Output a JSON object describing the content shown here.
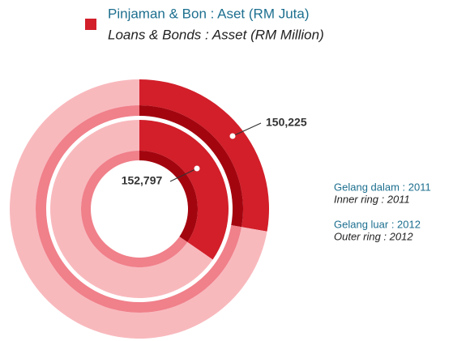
{
  "chart_data": {
    "type": "donut",
    "legend": {
      "name": "Pinjaman & Bon : Aset (RM Juta)",
      "name_en": "Loans & Bonds : Asset (RM Million)",
      "color": "#d21f2a"
    },
    "categories": [
      "Pinjaman & Bon : Aset (RM Juta)",
      null
    ],
    "colors": [
      "#d21f2a",
      "#f8b9bd"
    ],
    "accent_colors": [
      "#a3050f",
      "#f0808a"
    ],
    "rings": [
      {
        "name": "Gelang dalam : 2011",
        "name_en": "Inner ring : 2011",
        "values": [
          152797,
          288663
        ],
        "value_labels": [
          "152,797",
          null
        ]
      },
      {
        "name": "Gelang luar : 2012",
        "name_en": "Outer ring : 2012",
        "values": [
          150225,
          390585
        ],
        "value_labels": [
          "150,225",
          null
        ]
      }
    ]
  }
}
